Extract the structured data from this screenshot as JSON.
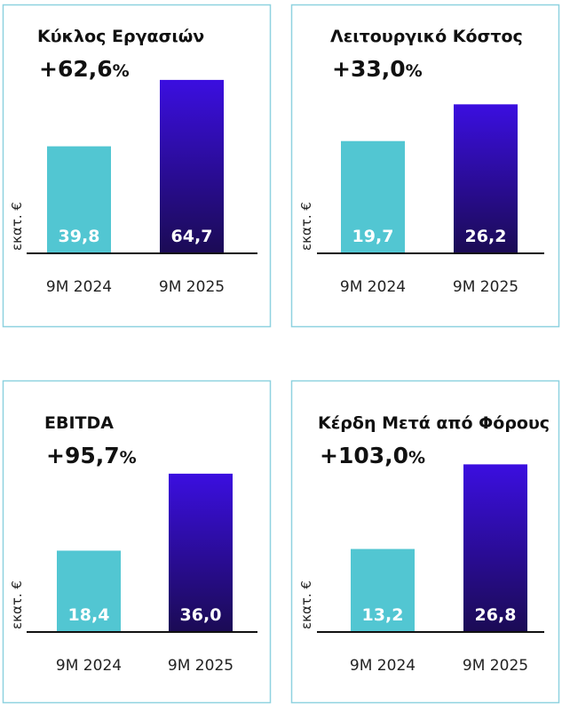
{
  "colors": {
    "bar_2024": "#52c6d2",
    "bar_2025_top": "#3b0ee0",
    "bar_2025_bottom": "#1b0b55",
    "panel_border": "#8fd2e0",
    "axis": "#111111"
  },
  "chart_data": [
    {
      "type": "bar",
      "title": "Κύκλος Εργασιών",
      "change": "+62,6%",
      "ylabel": "εκατ. €",
      "categories": [
        "9M 2024",
        "9M 2025"
      ],
      "values": [
        39.8,
        64.7
      ],
      "value_labels": [
        "39,8",
        "64,7"
      ],
      "grid": false
    },
    {
      "type": "bar",
      "title": "Λειτουργικό Κόστος",
      "change": "+33,0%",
      "ylabel": "εκατ. €",
      "categories": [
        "9M 2024",
        "9M 2025"
      ],
      "values": [
        19.7,
        26.2
      ],
      "value_labels": [
        "19,7",
        "26,2"
      ],
      "grid": false
    },
    {
      "type": "bar",
      "title": "EBITDA",
      "change": "+95,7%",
      "ylabel": "εκατ. €",
      "categories": [
        "9M 2024",
        "9M 2025"
      ],
      "values": [
        18.4,
        36.0
      ],
      "value_labels": [
        "18,4",
        "36,0"
      ],
      "grid": false
    },
    {
      "type": "bar",
      "title": "Κέρδη Μετά από Φόρους",
      "change": "+103,0%",
      "ylabel": "εκατ. €",
      "categories": [
        "9M 2024",
        "9M 2025"
      ],
      "values": [
        13.2,
        26.8
      ],
      "value_labels": [
        "13,2",
        "26,8"
      ],
      "grid": false
    }
  ]
}
